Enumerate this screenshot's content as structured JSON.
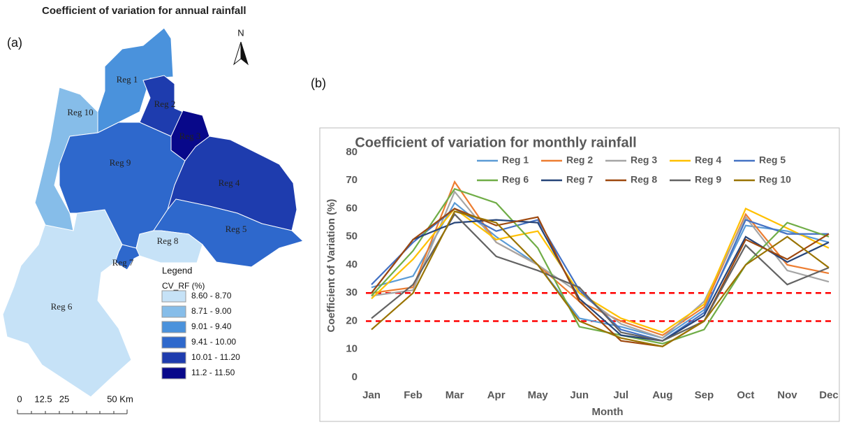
{
  "map": {
    "title": "Coefficient of variation for annual rainfall",
    "panel_label": "(a)",
    "north": "N",
    "regions": [
      "Reg 1",
      "Reg 10",
      "Reg 2",
      "Reg 3",
      "Reg 9",
      "Reg 4",
      "Reg 5",
      "Reg 8",
      "Reg 7",
      "Reg 6"
    ],
    "legend": {
      "title": "Legend",
      "field": "CV_RF (%)",
      "items": [
        {
          "label": "8.60 - 8.70",
          "color": "#c6e2f7"
        },
        {
          "label": "8.71 - 9.00",
          "color": "#86bde9"
        },
        {
          "label": "9.01 - 9.40",
          "color": "#4a92dc"
        },
        {
          "label": "9.41 - 10.00",
          "color": "#2e68cc"
        },
        {
          "label": "10.01 - 11.20",
          "color": "#1e3cae"
        },
        {
          "label": "11.2 - 11.50",
          "color": "#08088a"
        }
      ]
    },
    "scale_labels": [
      "0",
      "12.5",
      "25",
      "50 Km"
    ]
  },
  "chart_data": {
    "type": "line",
    "panel_label": "(b)",
    "title": "Coefficient of variation for monthly rainfall",
    "x_label": "Month",
    "y_label": "Coefficient of Variation (%)",
    "categories": [
      "Jan",
      "Feb",
      "Mar",
      "Apr",
      "May",
      "Jun",
      "Jul",
      "Aug",
      "Sep",
      "Oct",
      "Nov",
      "Dec"
    ],
    "ylim": [
      0,
      80
    ],
    "yticks": [
      0,
      10,
      20,
      30,
      40,
      50,
      60,
      70,
      80
    ],
    "hlines": [
      30,
      20
    ],
    "hline_color": "#ff0000",
    "series": [
      {
        "name": "Reg 1",
        "color": "#5b9bd5",
        "values": [
          32,
          36,
          62,
          50,
          40,
          21,
          18,
          14,
          24,
          54,
          52,
          48
        ]
      },
      {
        "name": "Reg 2",
        "color": "#ed7d31",
        "values": [
          30,
          32,
          69.5,
          48,
          40,
          27,
          20,
          15,
          25,
          58,
          40,
          37
        ]
      },
      {
        "name": "Reg 3",
        "color": "#a5a5a5",
        "values": [
          29,
          31,
          66,
          48,
          40,
          30,
          19,
          14,
          27,
          57,
          38,
          34
        ]
      },
      {
        "name": "Reg 4",
        "color": "#ffc000",
        "values": [
          28,
          42,
          60,
          49,
          52,
          30,
          21,
          16,
          26,
          60,
          53,
          46
        ]
      },
      {
        "name": "Reg 5",
        "color": "#4472c4",
        "values": [
          33,
          48,
          60,
          52,
          56,
          31,
          17,
          13,
          23,
          56,
          51,
          51
        ]
      },
      {
        "name": "Reg 6",
        "color": "#70ad47",
        "values": [
          29,
          45,
          67,
          62,
          46,
          18,
          15,
          12,
          17,
          40,
          55,
          50
        ]
      },
      {
        "name": "Reg 7",
        "color": "#264478",
        "values": [
          30,
          49,
          55,
          56,
          55,
          28,
          15,
          13,
          22,
          50,
          41,
          48
        ]
      },
      {
        "name": "Reg 8",
        "color": "#9e480e",
        "values": [
          30,
          49,
          60,
          54,
          57,
          27,
          13,
          11,
          20,
          49,
          42,
          51
        ]
      },
      {
        "name": "Reg 9",
        "color": "#636363",
        "values": [
          21,
          33,
          58,
          43,
          38,
          32,
          16,
          13,
          20,
          47,
          33,
          39
        ]
      },
      {
        "name": "Reg 10",
        "color": "#997300",
        "values": [
          17,
          30,
          59,
          55,
          40,
          20,
          14,
          11,
          20,
          40,
          50,
          39
        ]
      }
    ]
  }
}
